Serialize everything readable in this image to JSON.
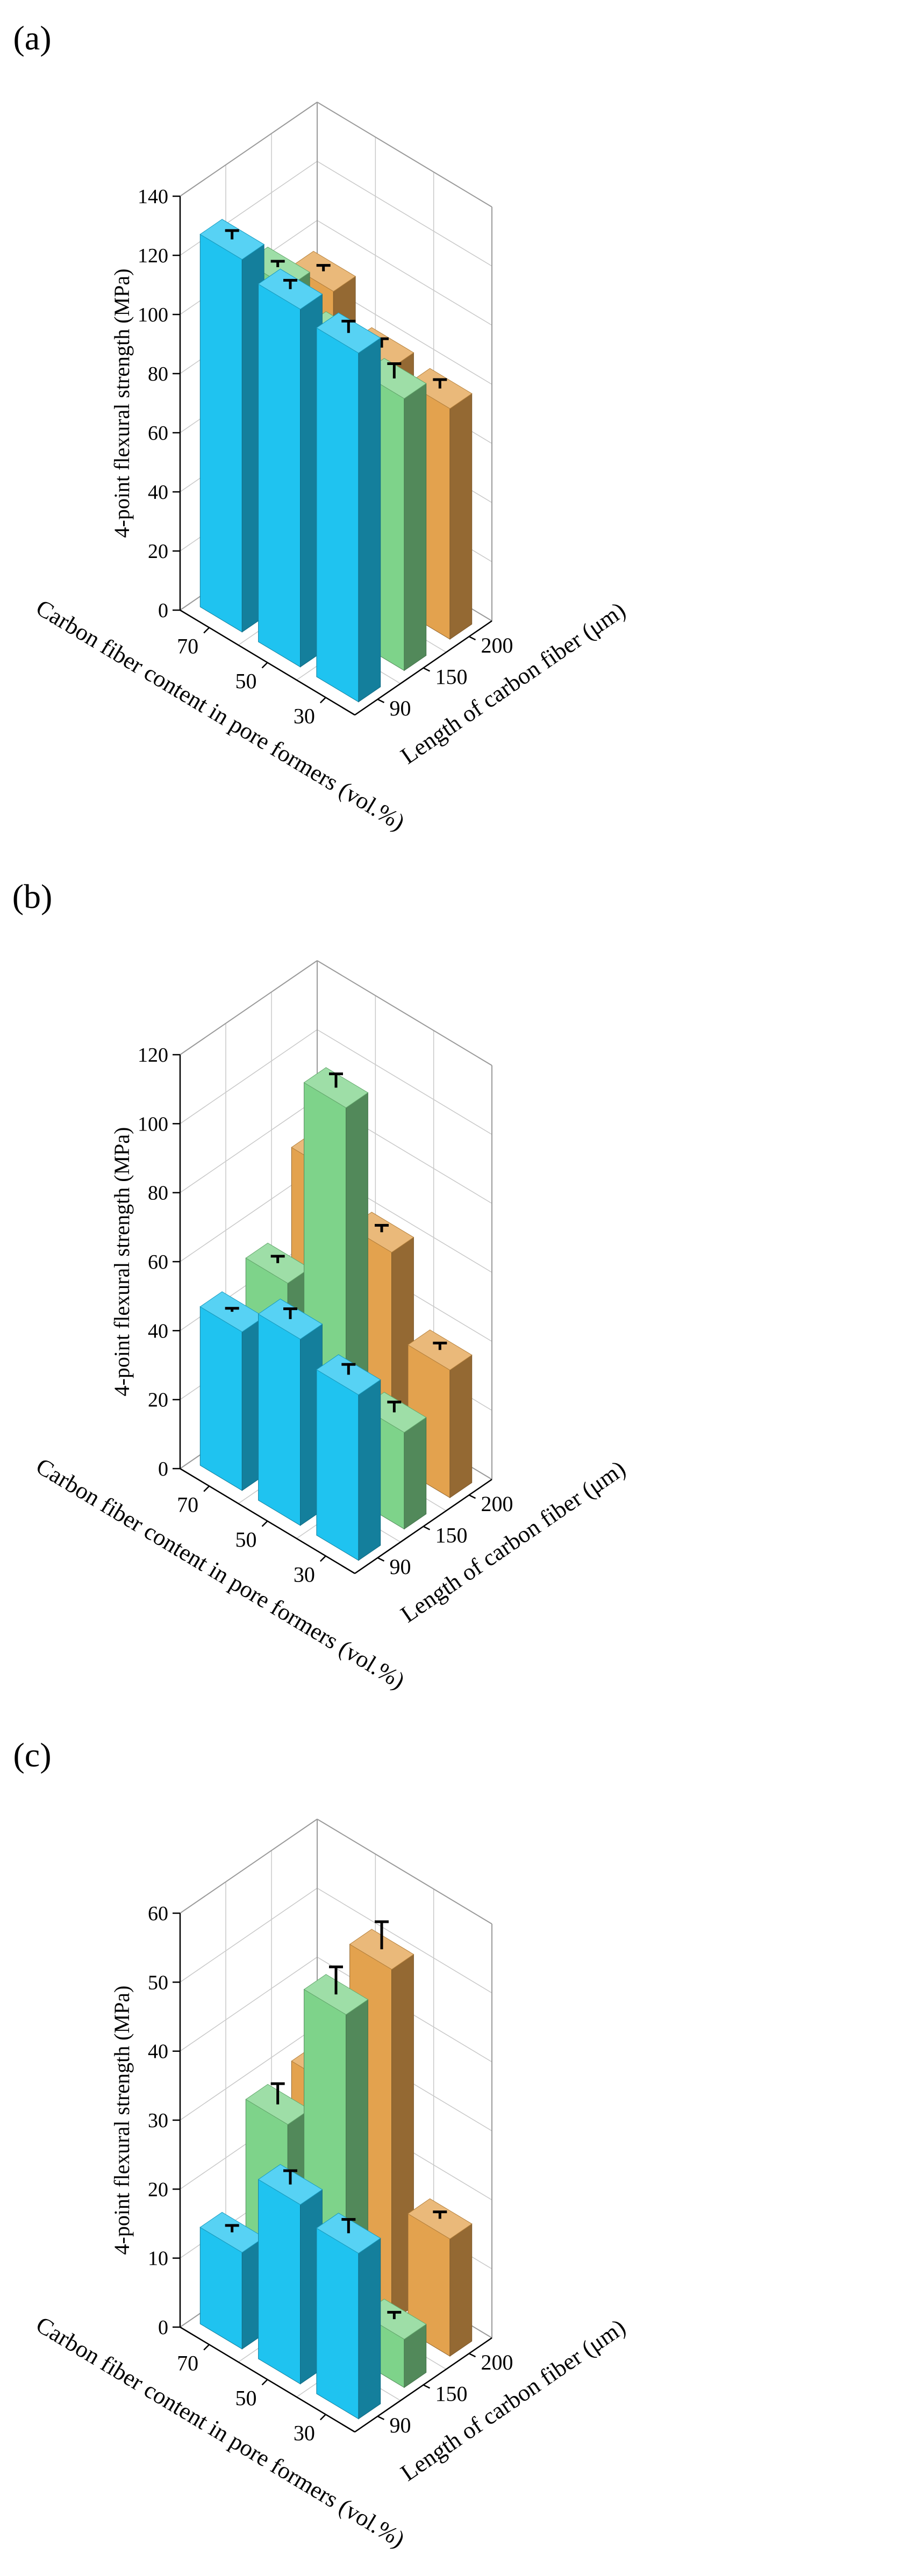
{
  "chart_data": [
    {
      "type": "bar3d",
      "panel_label": "(a)",
      "xlabel": "Carbon fiber content in pore formers (vol.%)",
      "ylabel": "4-point flexural strength (MPa)",
      "zlabel": "Length of carbon fiber (μm)",
      "x_categories": [
        "70",
        "50",
        "30"
      ],
      "z_categories": [
        "90",
        "150",
        "200"
      ],
      "ylim": [
        0,
        140
      ],
      "yticks": [
        "0",
        "20",
        "40",
        "60",
        "80",
        "100",
        "120",
        "140"
      ],
      "series": [
        {
          "name": "90",
          "color": "#1fc3f0",
          "values": [
            126,
            121,
            118
          ],
          "errors": [
            3,
            3,
            4
          ]
        },
        {
          "name": "150",
          "color": "#7ed38a",
          "values": [
            106,
            96,
            92
          ],
          "errors": [
            2,
            2,
            5
          ]
        },
        {
          "name": "200",
          "color": "#e3a24e",
          "values": [
            94,
            80,
            78
          ],
          "errors": [
            2,
            3,
            3
          ]
        }
      ]
    },
    {
      "type": "bar3d",
      "panel_label": "(b)",
      "xlabel": "Carbon fiber content in pore formers (vol.%)",
      "ylabel": "4-point flexural strength (MPa)",
      "zlabel": "Length of carbon fiber (μm)",
      "x_categories": [
        "70",
        "50",
        "30"
      ],
      "z_categories": [
        "90",
        "150",
        "200"
      ],
      "ylim": [
        0,
        120
      ],
      "yticks": [
        "0",
        "20",
        "40",
        "60",
        "80",
        "100",
        "120"
      ],
      "series": [
        {
          "name": "90",
          "color": "#1fc3f0",
          "values": [
            46,
            54,
            48
          ],
          "errors": [
            1,
            3,
            3
          ]
        },
        {
          "name": "150",
          "color": "#7ed38a",
          "values": [
            51,
            112,
            28
          ],
          "errors": [
            2,
            4,
            3
          ]
        },
        {
          "name": "200",
          "color": "#e3a24e",
          "values": [
            74,
            61,
            37
          ],
          "errors": [
            2,
            2,
            2
          ]
        }
      ]
    },
    {
      "type": "bar3d",
      "panel_label": "(c)",
      "xlabel": "Carbon fiber content in pore formers (vol.%)",
      "ylabel": "4-point flexural strength (MPa)",
      "zlabel": "Length of carbon fiber (μm)",
      "x_categories": [
        "70",
        "50",
        "30"
      ],
      "z_categories": [
        "90",
        "150",
        "200"
      ],
      "ylim": [
        0,
        60
      ],
      "yticks": [
        "0",
        "10",
        "20",
        "30",
        "40",
        "50",
        "60"
      ],
      "series": [
        {
          "name": "90",
          "color": "#1fc3f0",
          "values": [
            14,
            26,
            24
          ],
          "errors": [
            1,
            2,
            2
          ]
        },
        {
          "name": "150",
          "color": "#7ed38a",
          "values": [
            28,
            49,
            7
          ],
          "errors": [
            3,
            4,
            1
          ]
        },
        {
          "name": "200",
          "color": "#e3a24e",
          "values": [
            29,
            51,
            17
          ],
          "errors": [
            1,
            4,
            1
          ]
        }
      ]
    }
  ]
}
